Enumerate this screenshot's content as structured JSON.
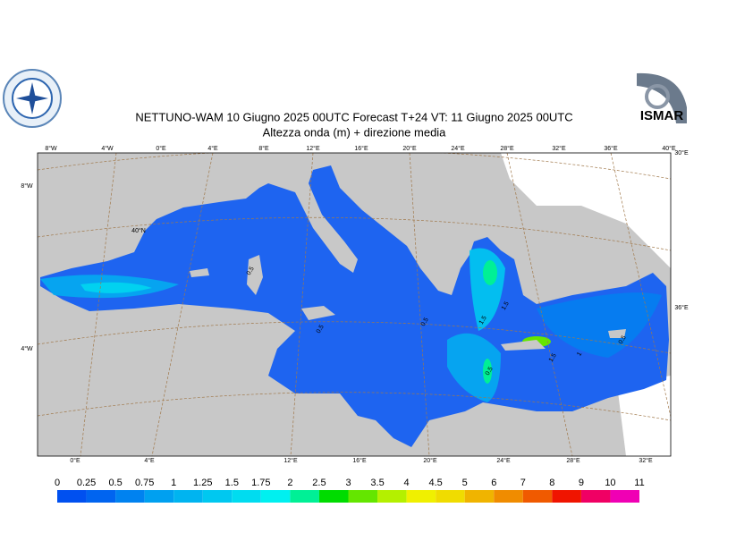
{
  "title": "NETTUNO-WAM  10   Giugno  2025 00UTC Forecast T+24 VT: 11   Giugno  2025 00UTC",
  "subtitle": "Altezza onda (m) + direzione media",
  "logo_right": "ISMAR",
  "top_lon_labels": [
    "8°W",
    "4°W",
    "0°E",
    "4°E",
    "8°E",
    "12°E",
    "16°E",
    "20°E",
    "24°E",
    "28°E",
    "32°E",
    "36°E",
    "40°E"
  ],
  "bottom_lon_labels": [
    "0°E",
    "4°E",
    "12°E",
    "16°E",
    "20°E",
    "24°E",
    "28°E",
    "32°E"
  ],
  "left_labels": [
    "8°W",
    "40°N",
    "4°W"
  ],
  "right_labels": [
    "30°E",
    "36°E"
  ],
  "contour_labels": [
    "0.5",
    "0.5",
    "0.5",
    "0.5",
    "1.5",
    "1.5",
    "1.5",
    "1",
    "0.5"
  ],
  "colorbar": {
    "levels": [
      0,
      0.25,
      0.5,
      0.75,
      1,
      1.25,
      1.5,
      1.75,
      2,
      2.5,
      3,
      3.5,
      4,
      4.5,
      5,
      6,
      7,
      8,
      9,
      10,
      11
    ],
    "colors": [
      "#0050f0",
      "#0064f0",
      "#0082f0",
      "#00a0f0",
      "#00b4f0",
      "#00c8f0",
      "#00dcf0",
      "#00f0f0",
      "#00f096",
      "#00dc00",
      "#64e600",
      "#b4f000",
      "#f0f000",
      "#f0dc00",
      "#f0b400",
      "#f08c00",
      "#f05a00",
      "#f01400",
      "#f00064",
      "#f000b4"
    ]
  }
}
